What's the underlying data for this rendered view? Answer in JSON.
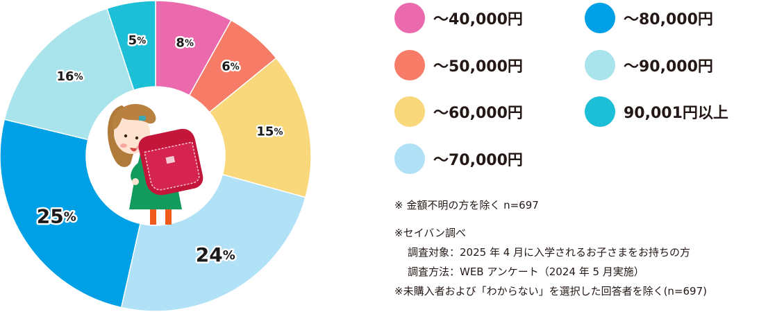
{
  "chart_data": {
    "type": "pie",
    "donut": true,
    "categories": [
      "～40,000円",
      "～50,000円",
      "～60,000円",
      "～70,000円",
      "～80,000円",
      "～90,000円",
      "90,001円以上"
    ],
    "values": [
      8,
      6,
      15,
      24,
      25,
      16,
      5
    ],
    "value_labels": [
      "8",
      "6",
      "15",
      "24",
      "25",
      "16",
      "5"
    ],
    "unit": "%",
    "colors": [
      "#ea6aad",
      "#f77c68",
      "#f8d87a",
      "#b1e1f7",
      "#00a0e6",
      "#a9e3ec",
      "#1cbfd6"
    ],
    "legend_placement": "right"
  },
  "legend": {
    "items": [
      {
        "label": "～40,000円",
        "color": "#ea6aad"
      },
      {
        "label": "～50,000円",
        "color": "#f77c68"
      },
      {
        "label": "～60,000円",
        "color": "#f8d87a"
      },
      {
        "label": "～70,000円",
        "color": "#b1e1f7"
      },
      {
        "label": "～80,000円",
        "color": "#00a0e6"
      },
      {
        "label": "～90,000円",
        "color": "#a9e3ec"
      },
      {
        "label": "90,001円以上",
        "color": "#1cbfd6"
      }
    ]
  },
  "notes": {
    "line1": "※ 金額不明の方を除く n=697",
    "line2": "※セイバン調べ",
    "line3": "調査対象：2025 年 4 月に入学されるお子さまをお持ちの方",
    "line4": "調査方法：WEB アンケート（2024 年 5 月実施）",
    "line5": "※未購入者および「わからない」を選択した回答者を除く(n=697)"
  },
  "center_illustration": "girl-with-randoseru-backpack"
}
